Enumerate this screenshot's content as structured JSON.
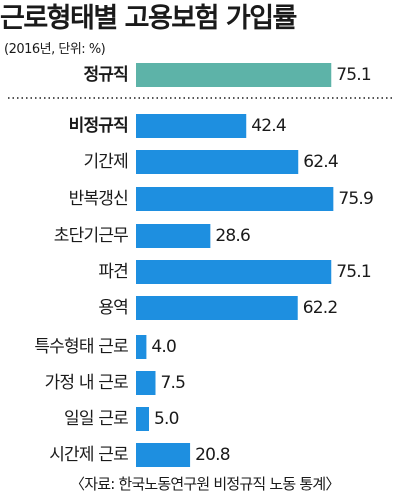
{
  "title": "근로형태별 고용보험 가입률",
  "subtitle": "(2016년, 단위: %)",
  "source": "〈자료: 한국노동연구원 비정규직 노동 통계〉",
  "chart_data": {
    "type": "bar",
    "orientation": "horizontal",
    "title": "근로형태별 고용보험 가입률",
    "unit": "%",
    "xlim": [
      0,
      100
    ],
    "grid": false,
    "categories": [
      "정규직",
      "비정규직",
      "기간제",
      "반복갱신",
      "초단기근무",
      "파견",
      "용역",
      "특수형태 근로",
      "가정 내 근로",
      "일일 근로",
      "시간제 근로"
    ],
    "values": [
      75.1,
      42.4,
      62.4,
      75.9,
      28.6,
      75.1,
      62.2,
      4.0,
      7.5,
      5.0,
      20.8
    ],
    "value_labels": [
      "75.1",
      "42.4",
      "62.4",
      "75.9",
      "28.6",
      "75.1",
      "62.2",
      "4.0",
      "7.5",
      "5.0",
      "20.8"
    ],
    "bold_categories": [
      "정규직",
      "비정규직"
    ],
    "colors": {
      "regular": "#5db3a8",
      "nonregular": "#1e8fe0",
      "divider": "#555555",
      "text": "#1a1a1a"
    }
  }
}
